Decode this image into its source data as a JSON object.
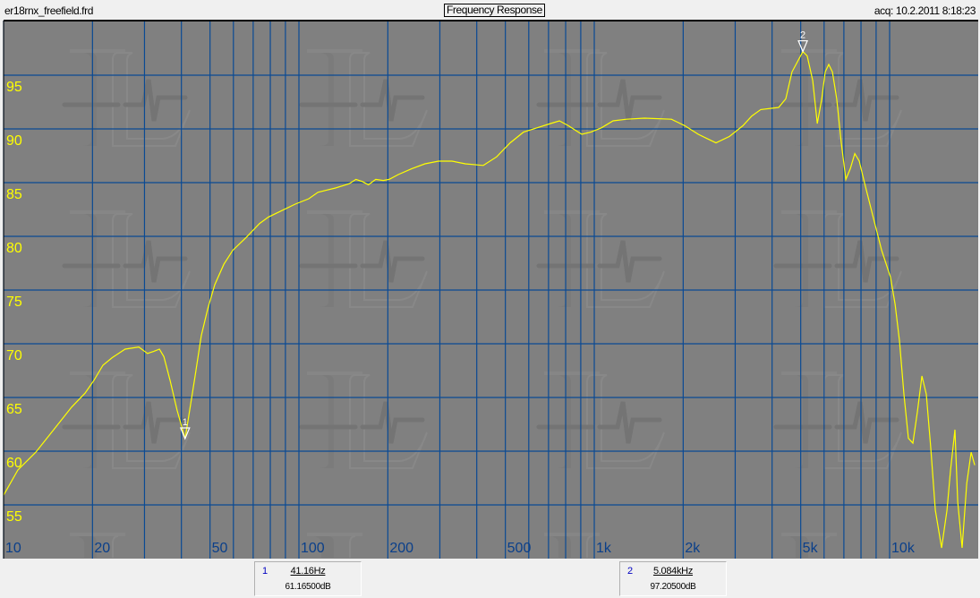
{
  "header": {
    "file_name": "er18rnx_freefield.frd",
    "title": "Frequency Response",
    "acquired": "acq: 10.2.2011 8:18:23"
  },
  "colors": {
    "plot_background": "#808080",
    "grid": "#0a4a94",
    "curve": "#ffff00",
    "y_tick_labels": "#ffff00",
    "x_tick_labels": "#0a3f8a",
    "marker": "#ffffff"
  },
  "chart_data": {
    "type": "line",
    "title": "Frequency Response",
    "x_scale": "log",
    "xlim": [
      10,
      19950
    ],
    "ylim": [
      50,
      100
    ],
    "grid": true,
    "x_ticks": [
      10,
      20,
      30,
      40,
      50,
      60,
      70,
      80,
      90,
      100,
      200,
      300,
      400,
      500,
      600,
      700,
      800,
      900,
      1000,
      2000,
      3000,
      4000,
      5000,
      6000,
      7000,
      8000,
      9000,
      10000
    ],
    "x_tick_labels": [
      {
        "value": 10,
        "label": "10"
      },
      {
        "value": 20,
        "label": "20"
      },
      {
        "value": 50,
        "label": "50"
      },
      {
        "value": 100,
        "label": "100"
      },
      {
        "value": 200,
        "label": "200"
      },
      {
        "value": 500,
        "label": "500"
      },
      {
        "value": 1000,
        "label": "1k"
      },
      {
        "value": 2000,
        "label": "2k"
      },
      {
        "value": 5000,
        "label": "5k"
      },
      {
        "value": 10000,
        "label": "10k"
      }
    ],
    "y_ticks": [
      55,
      60,
      65,
      70,
      75,
      80,
      85,
      90,
      95
    ],
    "y_tick_labels": [
      "55",
      "60",
      "65",
      "70",
      "75",
      "80",
      "85",
      "90",
      "95"
    ],
    "series": [
      {
        "x": [
          10,
          11.18,
          12.85,
          14.78,
          16.99,
          18.87,
          20.23,
          21.7,
          23.3,
          25.8,
          28.7,
          30.7,
          32.3,
          33.7,
          34.9,
          36.6,
          38.7,
          41.16,
          42.1,
          44.5,
          46.7,
          49.1,
          51.9,
          55.7,
          59.7,
          66.3,
          73.6,
          78.9,
          87.6,
          97.2,
          108,
          116,
          124,
          133,
          148,
          156,
          164,
          172,
          182,
          193,
          202,
          217,
          241,
          267,
          297,
          330,
          366,
          421,
          467,
          519,
          576,
          640,
          711,
          762,
          817,
          907,
          973,
          1057,
          1158,
          1285,
          1478,
          1824,
          2024,
          2249,
          2410,
          2583,
          2869,
          3186,
          3414,
          3660,
          4210,
          4450,
          4670,
          5084,
          5260,
          5490,
          5690,
          5890,
          6050,
          6220,
          6400,
          6620,
          6860,
          7110,
          7360,
          7620,
          7890,
          8170,
          8760,
          9400,
          10070,
          10430,
          10800,
          11180,
          11580,
          11990,
          12420,
          12860,
          13310,
          13780,
          14280,
          15000,
          15640,
          16080,
          16640,
          17000,
          17590,
          18240,
          18880,
          19420
        ],
        "y": [
          55.9,
          58.25,
          59.9,
          62.0,
          64.1,
          65.4,
          66.6,
          68.0,
          68.7,
          69.5,
          69.7,
          69.1,
          69.3,
          69.5,
          68.8,
          66.6,
          63.8,
          61.17,
          62.8,
          67.0,
          70.75,
          73.25,
          75.5,
          77.4,
          78.7,
          79.9,
          81.2,
          81.8,
          82.4,
          83.0,
          83.5,
          84.1,
          84.3,
          84.5,
          84.9,
          85.3,
          85.1,
          84.8,
          85.3,
          85.2,
          85.3,
          85.75,
          86.3,
          86.75,
          87.0,
          87.0,
          86.75,
          86.6,
          87.4,
          88.7,
          89.7,
          90.1,
          90.5,
          90.75,
          90.3,
          89.5,
          89.7,
          90.1,
          90.75,
          90.9,
          91.0,
          90.9,
          90.3,
          89.5,
          89.1,
          88.7,
          89.3,
          90.3,
          91.2,
          91.8,
          92.0,
          92.8,
          95.3,
          97.2,
          96.8,
          94.5,
          90.5,
          92.8,
          95.3,
          96.0,
          95.3,
          92.8,
          88.7,
          85.3,
          86.3,
          87.7,
          87.0,
          85.3,
          82.0,
          78.7,
          76.2,
          73.7,
          70.3,
          65.3,
          61.2,
          60.75,
          63.7,
          67.0,
          65.3,
          60.3,
          54.5,
          51.0,
          54.5,
          58.25,
          62.0,
          55.3,
          51.0,
          57.0,
          59.9,
          58.7
        ]
      }
    ],
    "markers": [
      {
        "id": "1",
        "freq": 41.16,
        "db": 61.165,
        "freq_label": "41.16Hz",
        "db_label": "61.16500dB"
      },
      {
        "id": "2",
        "freq": 5084,
        "db": 97.205,
        "freq_label": "5.084kHz",
        "db_label": "97.20500dB"
      }
    ]
  }
}
